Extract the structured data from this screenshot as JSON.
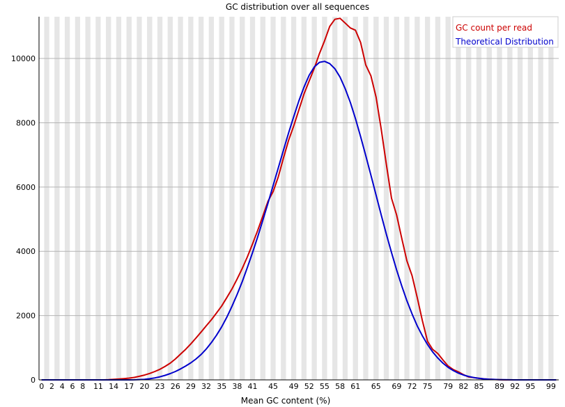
{
  "chart_data": {
    "type": "line",
    "title": "GC distribution over all sequences",
    "xlabel": "Mean GC content (%)",
    "ylabel": "",
    "xlim": [
      0,
      101
    ],
    "ylim": [
      0,
      11300
    ],
    "yticks": [
      0,
      2000,
      4000,
      6000,
      8000,
      10000
    ],
    "xticks": [
      0,
      2,
      4,
      6,
      8,
      11,
      14,
      17,
      20,
      23,
      26,
      29,
      32,
      35,
      38,
      41,
      45,
      49,
      52,
      55,
      58,
      61,
      65,
      69,
      72,
      75,
      79,
      82,
      85,
      89,
      92,
      95,
      99
    ],
    "grid": true,
    "legend_position": "top-right",
    "x": [
      0,
      1,
      2,
      3,
      4,
      5,
      6,
      7,
      8,
      9,
      10,
      11,
      12,
      13,
      14,
      15,
      16,
      17,
      18,
      19,
      20,
      21,
      22,
      23,
      24,
      25,
      26,
      27,
      28,
      29,
      30,
      31,
      32,
      33,
      34,
      35,
      36,
      37,
      38,
      39,
      40,
      41,
      42,
      43,
      44,
      45,
      46,
      47,
      48,
      49,
      50,
      51,
      52,
      53,
      54,
      55,
      56,
      57,
      58,
      59,
      60,
      61,
      62,
      63,
      64,
      65,
      66,
      67,
      68,
      69,
      70,
      71,
      72,
      73,
      74,
      75,
      76,
      77,
      78,
      79,
      80,
      81,
      82,
      83,
      84,
      85,
      86,
      87,
      88,
      89,
      90,
      91,
      92,
      93,
      94,
      95,
      96,
      97,
      98,
      99,
      100
    ],
    "series": [
      {
        "name": "GC count per read",
        "color": "#cc0000",
        "values": [
          0,
          0,
          0,
          0,
          0,
          0,
          0,
          0,
          0,
          0,
          0,
          0,
          0,
          5,
          15,
          25,
          40,
          55,
          75,
          110,
          150,
          200,
          260,
          330,
          420,
          520,
          650,
          800,
          950,
          1120,
          1300,
          1490,
          1680,
          1870,
          2080,
          2300,
          2560,
          2830,
          3140,
          3470,
          3830,
          4230,
          4650,
          5100,
          5560,
          5860,
          6320,
          6900,
          7450,
          7900,
          8400,
          8900,
          9300,
          9700,
          10150,
          10550,
          11000,
          11220,
          11250,
          11100,
          10950,
          10880,
          10500,
          9800,
          9460,
          8800,
          7800,
          6700,
          5650,
          5130,
          4400,
          3700,
          3240,
          2560,
          1840,
          1200,
          950,
          820,
          620,
          430,
          320,
          250,
          160,
          90,
          70,
          50,
          30,
          20,
          10,
          5,
          0,
          0,
          0,
          0,
          0,
          0,
          0,
          0,
          0,
          0,
          0
        ]
      },
      {
        "name": "Theoretical Distribution",
        "color": "#0000cc",
        "values": [
          0,
          0,
          0,
          0,
          0,
          0,
          0,
          0,
          0,
          0,
          0,
          0,
          0,
          0,
          0,
          0,
          0,
          1,
          3,
          8,
          18,
          35,
          60,
          95,
          140,
          195,
          260,
          340,
          430,
          530,
          650,
          790,
          960,
          1160,
          1390,
          1650,
          1950,
          2290,
          2660,
          3060,
          3500,
          3960,
          4450,
          4970,
          5500,
          6050,
          6600,
          7140,
          7680,
          8190,
          8680,
          9110,
          9480,
          9740,
          9880,
          9910,
          9840,
          9680,
          9420,
          9060,
          8630,
          8130,
          7570,
          6980,
          6370,
          5750,
          5130,
          4530,
          3960,
          3420,
          2920,
          2460,
          2050,
          1680,
          1370,
          1100,
          870,
          680,
          520,
          390,
          290,
          210,
          150,
          105,
          72,
          48,
          31,
          20,
          12,
          7,
          4,
          2,
          1,
          0,
          0,
          0,
          0,
          0,
          0,
          0,
          0
        ]
      }
    ]
  }
}
